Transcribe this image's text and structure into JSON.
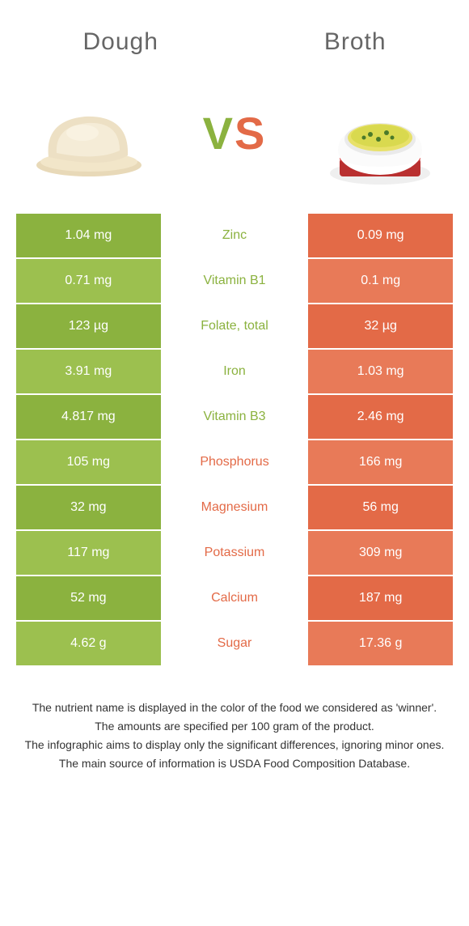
{
  "header": {
    "left_title": "Dough",
    "right_title": "Broth"
  },
  "vs": {
    "v": "V",
    "s": "S"
  },
  "colors": {
    "left": "#8bb23f",
    "right": "#e36a47",
    "left_alt": "#9cc04f",
    "right_alt": "#e87a58"
  },
  "table": {
    "rows": [
      {
        "left": "1.04 mg",
        "label": "Zinc",
        "right": "0.09 mg",
        "winner": "left"
      },
      {
        "left": "0.71 mg",
        "label": "Vitamin B1",
        "right": "0.1 mg",
        "winner": "left"
      },
      {
        "left": "123 µg",
        "label": "Folate, total",
        "right": "32 µg",
        "winner": "left"
      },
      {
        "left": "3.91 mg",
        "label": "Iron",
        "right": "1.03 mg",
        "winner": "left"
      },
      {
        "left": "4.817 mg",
        "label": "Vitamin B3",
        "right": "2.46 mg",
        "winner": "left"
      },
      {
        "left": "105 mg",
        "label": "Phosphorus",
        "right": "166 mg",
        "winner": "right"
      },
      {
        "left": "32 mg",
        "label": "Magnesium",
        "right": "56 mg",
        "winner": "right"
      },
      {
        "left": "117 mg",
        "label": "Potassium",
        "right": "309 mg",
        "winner": "right"
      },
      {
        "left": "52 mg",
        "label": "Calcium",
        "right": "187 mg",
        "winner": "right"
      },
      {
        "left": "4.62 g",
        "label": "Sugar",
        "right": "17.36 g",
        "winner": "right"
      }
    ]
  },
  "notes": [
    "The nutrient name is displayed in the color of the food we considered as 'winner'.",
    "The amounts are specified per 100 gram of the product.",
    "The infographic aims to display only the significant differences, ignoring minor ones.",
    "The main source of information is USDA Food Composition Database."
  ]
}
